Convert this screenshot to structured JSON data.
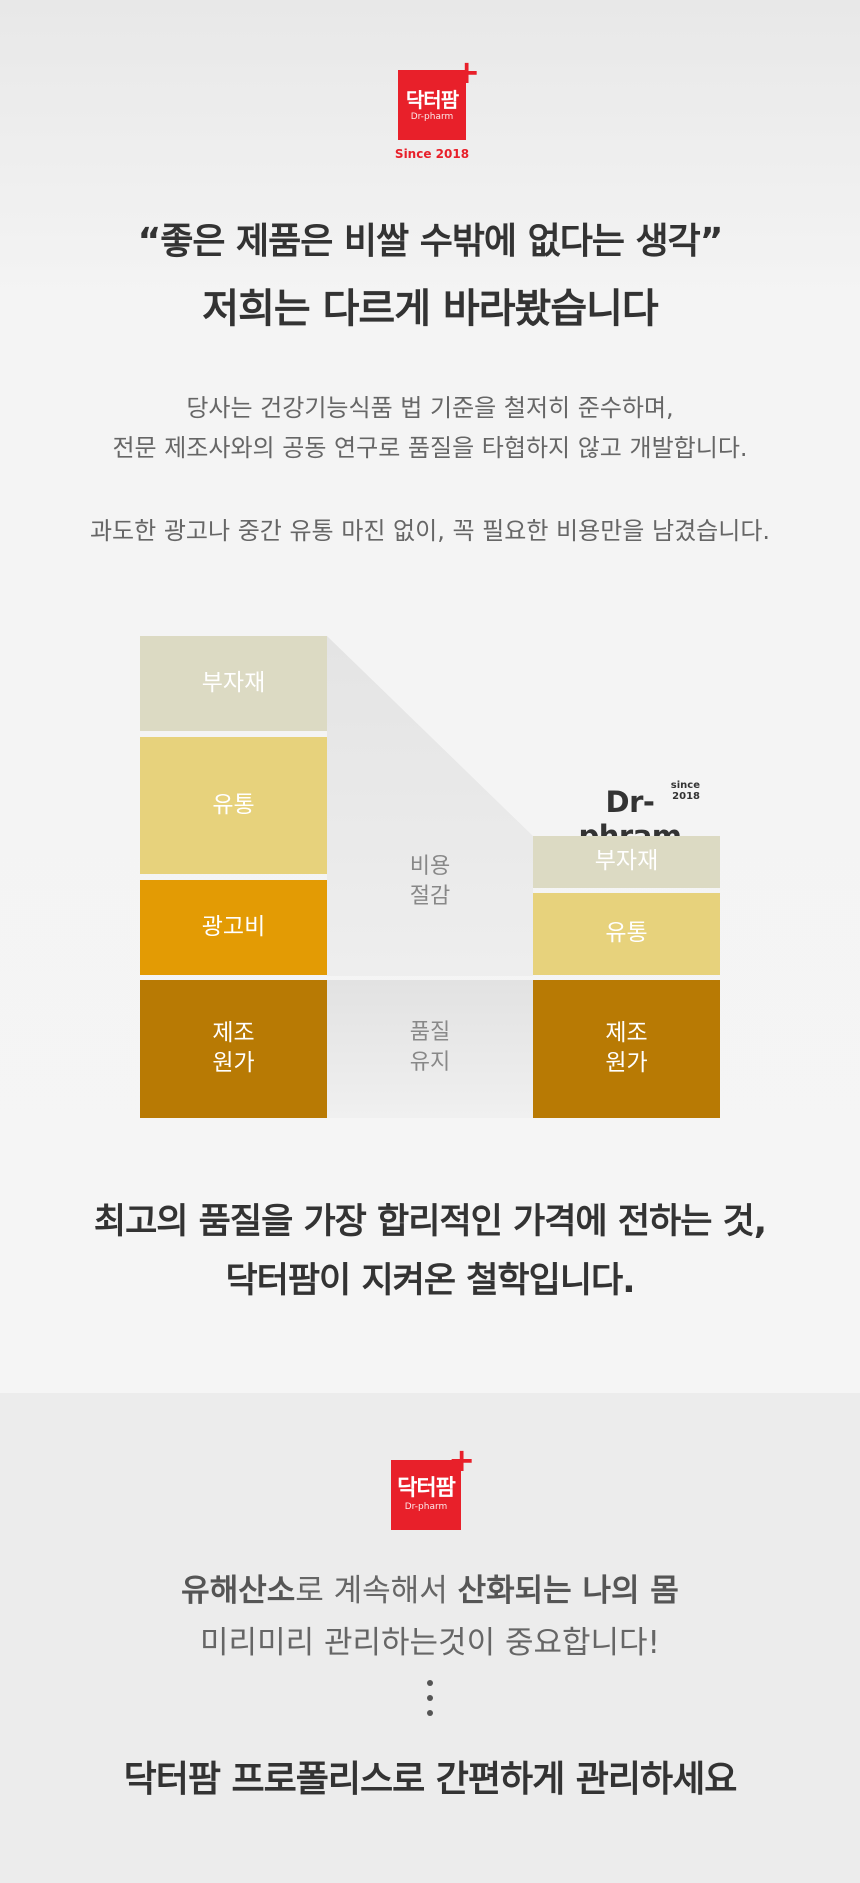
{
  "logo": {
    "ko": "닥터팜",
    "en": "Dr-pharm",
    "plus": "+",
    "since": "Since 2018"
  },
  "headline": {
    "line1": "“좋은 제품은 비쌀 수밖에 없다는 생각”",
    "line2": "저희는 다르게 바라봤습니다"
  },
  "intro": {
    "line1": "당사는 건강기능식품 법 기준을 철저히 준수하며,",
    "line2": "전문 제조사와의 공동 연구로 품질을 타협하지 않고 개발합니다.",
    "line3": "과도한 광고나 중간 유통 마진 없이, 꼭 필요한 비용만을 남겼습니다."
  },
  "comparison": {
    "left_stack": [
      {
        "label": "부자재",
        "color": "#dcdac3"
      },
      {
        "label": "유통",
        "color": "#e7d27c"
      },
      {
        "label": "광고비",
        "color": "#e39b04"
      },
      {
        "label": "제조\n원가",
        "color": "#b87a04"
      }
    ],
    "right_stack": [
      {
        "label": "부자재",
        "color": "#dcdac3"
      },
      {
        "label": "유통",
        "color": "#e7d27c"
      },
      {
        "label": "제조\n원가",
        "color": "#b87a04"
      }
    ],
    "middle_labels": {
      "savings": "비용\n절감",
      "quality": "품질\n유지"
    },
    "brand": {
      "name": "Dr-phram",
      "since": "since 2018"
    }
  },
  "conclusion": {
    "line1": "최고의 품질을 가장 합리적인 가격에 전하는 것,",
    "line2": "닥터팜이 지켜온 철학입니다."
  },
  "bottom": {
    "line1_bold1": "유해산소",
    "line1_plain1": "로 계속해서 ",
    "line1_bold2": "산화되는 나의 몸",
    "line2": "미리미리 관리하는것이 중요합니다!",
    "final": "닥터팜 프로폴리스로 간편하게 관리하세요"
  },
  "colors": {
    "brand_red": "#e8202a"
  }
}
